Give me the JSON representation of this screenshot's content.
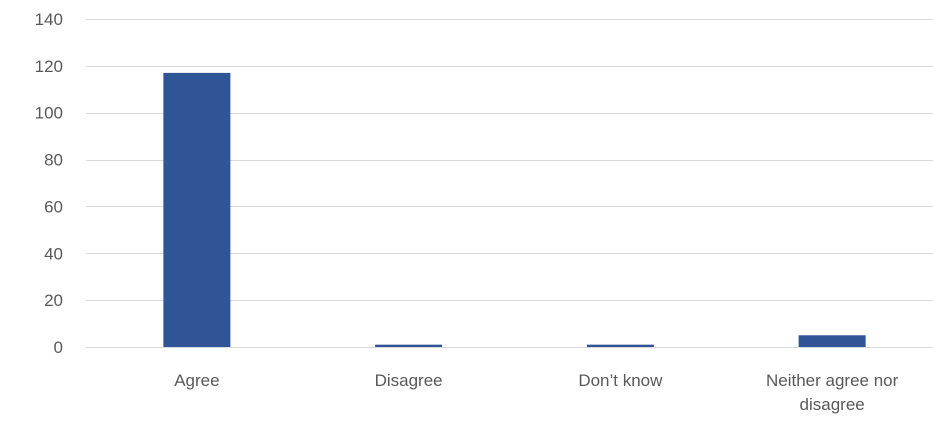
{
  "chart_data": {
    "type": "bar",
    "categories": [
      "Agree",
      "Disagree",
      "Don’t know",
      "Neither agree nor disagree"
    ],
    "category_label_lines": [
      [
        "Agree"
      ],
      [
        "Disagree"
      ],
      [
        "Don’t know"
      ],
      [
        "Neither agree nor",
        "disagree"
      ]
    ],
    "values": [
      117,
      1,
      1,
      5
    ],
    "ylim": [
      0,
      140
    ],
    "yticks": [
      0,
      20,
      40,
      60,
      80,
      100,
      120,
      140
    ],
    "ytick_labels": [
      "0",
      "20",
      "40",
      "60",
      "80",
      "100",
      "120",
      "140"
    ],
    "title": "",
    "xlabel": "",
    "ylabel": "",
    "grid": true,
    "bar_color": "#2f5597",
    "grid_color": "#d9d9d9",
    "text_color": "#595959"
  }
}
